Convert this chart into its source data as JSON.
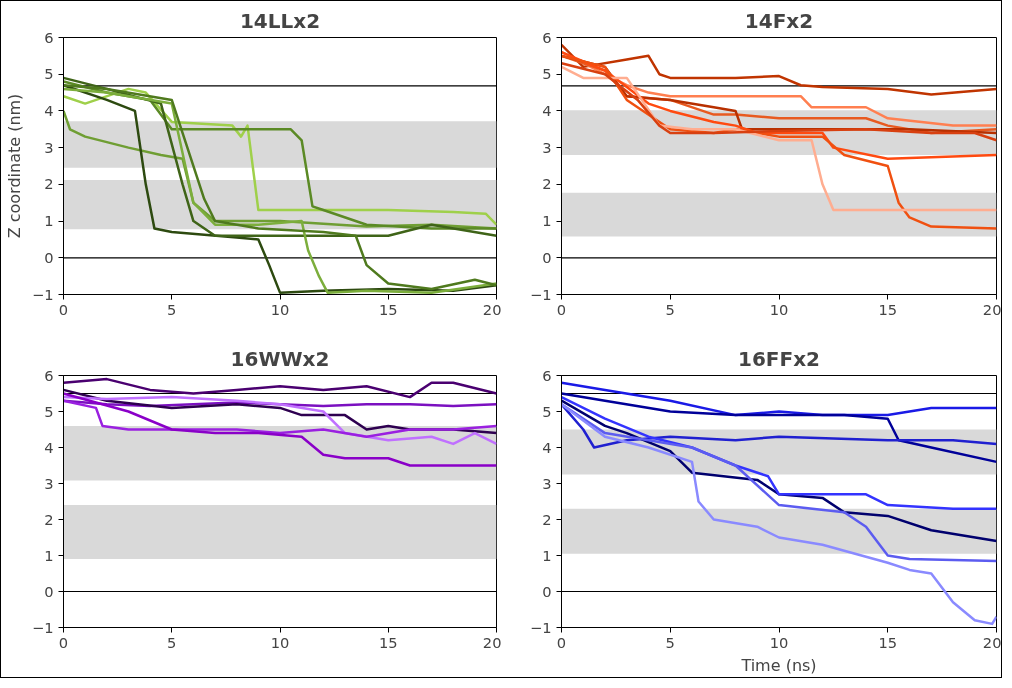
{
  "chart_data": [
    {
      "type": "line",
      "title": "14LLx2",
      "ylabel": "Z coordinate (nm)",
      "xlim": [
        0,
        20
      ],
      "ylim": [
        -1,
        6
      ],
      "xticks": [
        0,
        5,
        10,
        15,
        20
      ],
      "yticks": [
        -1,
        0,
        1,
        2,
        3,
        4,
        5,
        6
      ],
      "grid": false,
      "marker": "none",
      "line_style": "solid",
      "ref_lines": [
        {
          "axis": "y",
          "value": 0,
          "color": "#000000"
        },
        {
          "axis": "y",
          "value": 4.68,
          "color": "#000000"
        }
      ],
      "bands": [
        {
          "axis": "y",
          "from": 2.45,
          "to": 3.72,
          "color": "#d9d9d9"
        },
        {
          "axis": "y",
          "from": 0.78,
          "to": 2.12,
          "color": "#d9d9d9"
        }
      ],
      "series": [
        {
          "color": "#9fd04a",
          "x": [
            0,
            1,
            3,
            3.8,
            5,
            7.8,
            8.2,
            8.5,
            9,
            12,
            15,
            18,
            19.5,
            20
          ],
          "values": [
            4.4,
            4.2,
            4.6,
            4.5,
            3.7,
            3.6,
            3.3,
            3.6,
            1.3,
            1.3,
            1.3,
            1.25,
            1.2,
            0.9
          ]
        },
        {
          "color": "#6f9e33",
          "x": [
            0,
            0.3,
            1,
            3,
            4.5,
            5.5,
            6,
            7,
            10,
            14,
            17,
            20
          ],
          "values": [
            4.0,
            3.5,
            3.3,
            3.0,
            2.8,
            2.7,
            1.5,
            1.0,
            1.0,
            0.85,
            0.9,
            0.8
          ]
        },
        {
          "color": "#5b8a25",
          "x": [
            0,
            2,
            4,
            5,
            7,
            10.5,
            11,
            11.5,
            12,
            14,
            17,
            20
          ],
          "values": [
            4.8,
            4.5,
            4.3,
            3.5,
            3.5,
            3.5,
            3.2,
            1.4,
            1.3,
            0.9,
            0.8,
            0.8
          ]
        },
        {
          "color": "#2d4a10",
          "x": [
            0,
            2,
            3.3,
            3.8,
            4.2,
            5,
            8,
            9,
            9.5,
            10,
            12,
            15,
            18,
            20
          ],
          "values": [
            4.7,
            4.3,
            4.0,
            2.0,
            0.8,
            0.7,
            0.55,
            0.5,
            -0.2,
            -0.95,
            -0.9,
            -0.85,
            -0.9,
            -0.75
          ]
        },
        {
          "color": "#3f6418",
          "x": [
            0,
            2,
            4.5,
            5.5,
            6,
            7,
            10,
            15,
            17,
            20
          ],
          "values": [
            4.9,
            4.6,
            4.2,
            2.0,
            1.0,
            0.6,
            0.6,
            0.6,
            0.9,
            0.6
          ]
        },
        {
          "color": "#7cae3c",
          "x": [
            0,
            2,
            5,
            6,
            7,
            9,
            11,
            11.3,
            11.8,
            12.2,
            14,
            17,
            20
          ],
          "values": [
            4.6,
            4.5,
            4.2,
            1.5,
            0.9,
            0.9,
            1.0,
            0.2,
            -0.5,
            -0.95,
            -0.9,
            -0.95,
            -0.7
          ]
        },
        {
          "color": "#4f7a1e",
          "x": [
            0,
            2,
            5,
            6.5,
            7,
            9,
            12,
            13.5,
            14,
            15,
            17,
            19,
            20
          ],
          "values": [
            4.7,
            4.6,
            4.3,
            1.6,
            1.0,
            0.8,
            0.7,
            0.6,
            -0.2,
            -0.7,
            -0.85,
            -0.6,
            -0.75
          ]
        }
      ]
    },
    {
      "type": "line",
      "title": "14Fx2",
      "xlim": [
        0,
        20
      ],
      "ylim": [
        -1,
        6
      ],
      "xticks": [
        0,
        5,
        10,
        15,
        20
      ],
      "yticks": [
        -1,
        0,
        1,
        2,
        3,
        4,
        5,
        6
      ],
      "grid": false,
      "marker": "none",
      "line_style": "solid",
      "ref_lines": [
        {
          "axis": "y",
          "value": 0,
          "color": "#000000"
        },
        {
          "axis": "y",
          "value": 4.68,
          "color": "#000000"
        }
      ],
      "bands": [
        {
          "axis": "y",
          "from": 2.8,
          "to": 4.02,
          "color": "#d9d9d9"
        },
        {
          "axis": "y",
          "from": 0.58,
          "to": 1.77,
          "color": "#d9d9d9"
        }
      ],
      "series": [
        {
          "color": "#c03400",
          "x": [
            0,
            1,
            3,
            4,
            4.5,
            5,
            8,
            10,
            11,
            12,
            15,
            17,
            20
          ],
          "values": [
            5.8,
            5.2,
            5.4,
            5.5,
            5.0,
            4.9,
            4.9,
            4.95,
            4.7,
            4.65,
            4.6,
            4.45,
            4.6
          ]
        },
        {
          "color": "#ff7f50",
          "x": [
            0,
            2,
            3,
            4,
            5,
            8,
            11,
            11.5,
            14,
            15,
            18,
            20
          ],
          "values": [
            5.6,
            5.0,
            4.7,
            4.5,
            4.4,
            4.4,
            4.4,
            4.1,
            4.1,
            3.8,
            3.6,
            3.6
          ]
        },
        {
          "color": "#e85a20",
          "x": [
            0,
            2,
            3,
            5,
            7,
            8,
            10,
            14,
            15,
            17,
            20
          ],
          "values": [
            5.5,
            5.1,
            4.4,
            4.3,
            3.9,
            3.9,
            3.8,
            3.8,
            3.6,
            3.4,
            3.5
          ]
        },
        {
          "color": "#b83000",
          "x": [
            0,
            2,
            3,
            5,
            7,
            8,
            8.3,
            12,
            16,
            20
          ],
          "values": [
            5.5,
            5.2,
            4.4,
            4.3,
            4.1,
            4.0,
            3.5,
            3.5,
            3.5,
            3.4
          ]
        },
        {
          "color": "#ff4a10",
          "x": [
            0,
            2,
            4,
            5,
            7,
            8,
            9,
            12,
            12.5,
            15,
            20
          ],
          "values": [
            5.6,
            5.1,
            4.2,
            4.0,
            3.7,
            3.6,
            3.4,
            3.4,
            3.0,
            2.7,
            2.8
          ]
        },
        {
          "color": "#f05010",
          "x": [
            0,
            2,
            3,
            5,
            7,
            8,
            10,
            12,
            13,
            15,
            15.5,
            16,
            17,
            20
          ],
          "values": [
            5.5,
            5.2,
            4.3,
            3.5,
            3.4,
            3.5,
            3.3,
            3.3,
            2.8,
            2.5,
            1.5,
            1.1,
            0.85,
            0.8
          ]
        },
        {
          "color": "#ffad90",
          "x": [
            0,
            1,
            3,
            4.5,
            6,
            8,
            10,
            11.5,
            12,
            12.5,
            15,
            20
          ],
          "values": [
            5.2,
            4.9,
            4.9,
            3.6,
            3.5,
            3.5,
            3.2,
            3.2,
            2.0,
            1.3,
            1.3,
            1.3
          ]
        },
        {
          "color": "#d84010",
          "x": [
            0,
            2,
            3.5,
            4.5,
            5,
            7,
            10,
            14,
            17,
            19,
            20
          ],
          "values": [
            5.3,
            5.0,
            4.3,
            3.6,
            3.4,
            3.4,
            3.45,
            3.5,
            3.4,
            3.4,
            3.2
          ]
        }
      ]
    },
    {
      "type": "line",
      "title": "16WWx2",
      "xlim": [
        0,
        20
      ],
      "ylim": [
        -1,
        6
      ],
      "xticks": [
        0,
        5,
        10,
        15,
        20
      ],
      "yticks": [
        -1,
        0,
        1,
        2,
        3,
        4,
        5,
        6
      ],
      "grid": false,
      "marker": "none",
      "line_style": "solid",
      "ref_lines": [
        {
          "axis": "y",
          "value": 0,
          "color": "#000000"
        },
        {
          "axis": "y",
          "value": 5.5,
          "color": "#000000"
        }
      ],
      "bands": [
        {
          "axis": "y",
          "from": 3.08,
          "to": 4.6,
          "color": "#d9d9d9"
        },
        {
          "axis": "y",
          "from": 0.9,
          "to": 2.4,
          "color": "#d9d9d9"
        }
      ],
      "series": [
        {
          "color": "#4a0070",
          "x": [
            0,
            2,
            4,
            6,
            8,
            10,
            12,
            14,
            16,
            17,
            18,
            20
          ],
          "values": [
            5.8,
            5.9,
            5.6,
            5.5,
            5.6,
            5.7,
            5.6,
            5.7,
            5.4,
            5.8,
            5.8,
            5.5
          ]
        },
        {
          "color": "#7b10c0",
          "x": [
            0,
            2,
            4,
            6,
            8,
            10,
            12,
            14,
            16,
            18,
            20
          ],
          "values": [
            5.3,
            5.2,
            5.15,
            5.2,
            5.25,
            5.2,
            5.15,
            5.2,
            5.2,
            5.15,
            5.2
          ]
        },
        {
          "color": "#2e0050",
          "x": [
            0,
            2,
            5,
            8,
            10,
            11,
            13,
            14,
            15,
            16,
            18,
            20
          ],
          "values": [
            5.6,
            5.3,
            5.1,
            5.2,
            5.1,
            4.9,
            4.9,
            4.5,
            4.6,
            4.5,
            4.5,
            4.4
          ]
        },
        {
          "color": "#c070ff",
          "x": [
            0,
            2,
            5,
            8,
            10,
            12,
            13,
            15,
            17,
            18,
            19,
            20
          ],
          "values": [
            5.4,
            5.35,
            5.4,
            5.3,
            5.2,
            5.0,
            4.4,
            4.2,
            4.3,
            4.1,
            4.4,
            4.1
          ]
        },
        {
          "color": "#9a20e0",
          "x": [
            0,
            1.5,
            1.8,
            3,
            5,
            8,
            10,
            12,
            14,
            16,
            18,
            20
          ],
          "values": [
            5.3,
            5.1,
            4.6,
            4.5,
            4.5,
            4.5,
            4.4,
            4.5,
            4.3,
            4.5,
            4.5,
            4.6
          ]
        },
        {
          "color": "#8a00c8",
          "x": [
            0,
            3,
            5,
            7,
            9,
            11,
            12,
            13,
            15,
            16,
            18,
            20
          ],
          "values": [
            5.5,
            5.0,
            4.5,
            4.4,
            4.4,
            4.3,
            3.8,
            3.7,
            3.7,
            3.5,
            3.5,
            3.5
          ]
        }
      ]
    },
    {
      "type": "line",
      "title": "16FFx2",
      "xlabel": "Time (ns)",
      "xlim": [
        0,
        20
      ],
      "ylim": [
        -1,
        6
      ],
      "xticks": [
        0,
        5,
        10,
        15,
        20
      ],
      "yticks": [
        -1,
        0,
        1,
        2,
        3,
        4,
        5,
        6
      ],
      "grid": false,
      "marker": "none",
      "line_style": "solid",
      "ref_lines": [
        {
          "axis": "y",
          "value": 0,
          "color": "#000000"
        },
        {
          "axis": "y",
          "value": 5.5,
          "color": "#000000"
        }
      ],
      "bands": [
        {
          "axis": "y",
          "from": 3.25,
          "to": 4.5,
          "color": "#d9d9d9"
        },
        {
          "axis": "y",
          "from": 1.05,
          "to": 2.3,
          "color": "#d9d9d9"
        }
      ],
      "series": [
        {
          "color": "#1a1ae6",
          "x": [
            0,
            2,
            5,
            8,
            10,
            12,
            15,
            16,
            17,
            20
          ],
          "values": [
            5.8,
            5.6,
            5.3,
            4.9,
            5.0,
            4.9,
            4.9,
            5.0,
            5.1,
            5.1
          ]
        },
        {
          "color": "#000099",
          "x": [
            0,
            2,
            5,
            8,
            10,
            13,
            15,
            15.5,
            17,
            20
          ],
          "values": [
            5.5,
            5.3,
            5.0,
            4.9,
            4.9,
            4.9,
            4.8,
            4.2,
            4.0,
            3.6
          ]
        },
        {
          "color": "#2020d0",
          "x": [
            0,
            1,
            1.5,
            3,
            5,
            8,
            10,
            15,
            18,
            20
          ],
          "values": [
            5.2,
            4.5,
            4.0,
            4.2,
            4.3,
            4.2,
            4.3,
            4.2,
            4.2,
            4.1
          ]
        },
        {
          "color": "#00006e",
          "x": [
            0,
            2,
            3,
            5,
            6,
            9,
            10,
            12,
            13,
            15,
            17,
            20
          ],
          "values": [
            5.3,
            4.6,
            4.4,
            3.9,
            3.3,
            3.1,
            2.7,
            2.6,
            2.2,
            2.1,
            1.7,
            1.4
          ]
        },
        {
          "color": "#3333ff",
          "x": [
            0,
            2,
            4,
            6,
            8,
            9.5,
            10,
            14,
            15,
            18,
            20
          ],
          "values": [
            5.4,
            4.8,
            4.3,
            4.0,
            3.5,
            3.2,
            2.7,
            2.7,
            2.4,
            2.3,
            2.3
          ]
        },
        {
          "color": "#5c5cf0",
          "x": [
            0,
            2,
            4,
            6,
            8,
            10,
            13,
            14,
            15,
            16,
            20
          ],
          "values": [
            5.2,
            4.4,
            4.2,
            4.0,
            3.5,
            2.4,
            2.2,
            1.8,
            1.0,
            0.9,
            0.85
          ]
        },
        {
          "color": "#8a8aff",
          "x": [
            0,
            2,
            4,
            6,
            6.3,
            7,
            9,
            10,
            12,
            15,
            16,
            17,
            18,
            19,
            19.8,
            20
          ],
          "values": [
            5.2,
            4.3,
            4.0,
            3.6,
            2.5,
            2.0,
            1.8,
            1.5,
            1.3,
            0.8,
            0.6,
            0.5,
            -0.3,
            -0.8,
            -0.9,
            -0.7
          ]
        }
      ]
    }
  ]
}
